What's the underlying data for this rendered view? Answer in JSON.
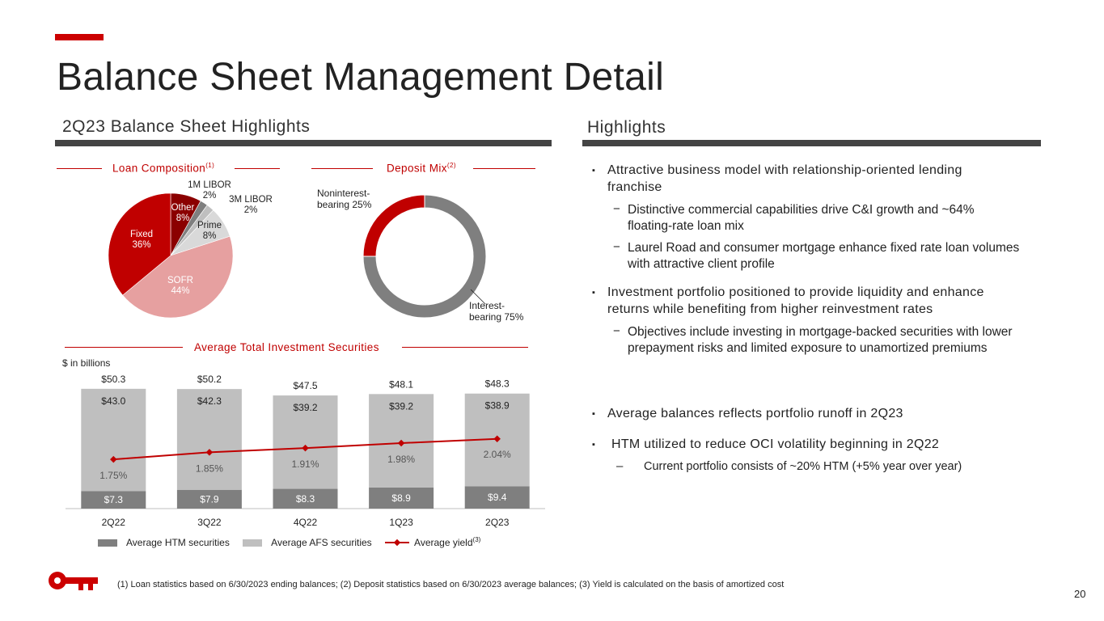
{
  "title": "Balance Sheet Management Detail",
  "left_section_title": "2Q23 Balance Sheet Highlights",
  "right_section_title": "Highlights",
  "highlights": [
    {
      "text": "Attractive business model with relationship-oriented lending franchise",
      "subs": [
        "Distinctive commercial capabilities drive C&I growth and ~64% floating-rate loan mix",
        "Laurel Road and consumer mortgage enhance fixed rate loan volumes with attractive client profile"
      ]
    },
    {
      "text": "Investment portfolio positioned to provide liquidity and enhance returns while benefiting from higher reinvestment rates",
      "subs": [
        "Objectives include investing in mortgage-backed securities with lower prepayment risks and limited exposure to unamortized premiums"
      ]
    },
    {
      "text": "Average balances reflects portfolio runoff in 2Q23",
      "subs": []
    },
    {
      "text": "HTM utilized to reduce OCI volatility beginning in 2Q22",
      "subs": [
        "Current portfolio consists of ~20% HTM (+5% year over year)"
      ]
    }
  ],
  "footnote": "(1) Loan statistics based on 6/30/2023 ending balances; (2) Deposit statistics based on 6/30/2023 average balances; (3) Yield is calculated on the basis of amortized cost",
  "page_number": "20",
  "colors": {
    "accent": "#cc0000",
    "dark_red": "#8b0000",
    "gray": "#7f7f7f",
    "light_gray": "#bfbfbf",
    "pink": "#e6a0a0"
  },
  "chart_data": [
    {
      "type": "pie",
      "title": "Loan Composition",
      "title_sup": "(1)",
      "slices": [
        {
          "label": "Other",
          "pct_text": "8%",
          "value": 8,
          "color": "#8b0000"
        },
        {
          "label": "1M LIBOR",
          "pct_text": "2%",
          "value": 2,
          "color": "#7f7f7f"
        },
        {
          "label": "3M LIBOR",
          "pct_text": "2%",
          "value": 2,
          "color": "#bfbfbf"
        },
        {
          "label": "Prime",
          "pct_text": "8%",
          "value": 8,
          "color": "#d9d9d9"
        },
        {
          "label": "SOFR",
          "pct_text": "44%",
          "value": 44,
          "color": "#e6a0a0"
        },
        {
          "label": "Fixed",
          "pct_text": "36%",
          "value": 36,
          "color": "#c00000"
        }
      ]
    },
    {
      "type": "pie",
      "title": "Deposit Mix",
      "title_sup": "(2)",
      "slices": [
        {
          "label": "Interest-\nbearing",
          "pct_text": "75%",
          "value": 75,
          "color": "#7f7f7f"
        },
        {
          "label": "Noninterest-\nbearing",
          "pct_text": "25%",
          "value": 25,
          "color": "#c00000"
        }
      ]
    },
    {
      "type": "bar",
      "title": "Average Total Investment Securities",
      "unit_note": "$ in billions",
      "categories": [
        "2Q22",
        "3Q22",
        "4Q22",
        "1Q23",
        "2Q23"
      ],
      "totals": [
        "$50.3",
        "$50.2",
        "$47.5",
        "$48.1",
        "$48.3"
      ],
      "series": [
        {
          "name": "Average HTM securities",
          "values": [
            7.3,
            7.9,
            8.3,
            8.9,
            9.4
          ],
          "labels": [
            "$7.3",
            "$7.9",
            "$8.3",
            "$8.9",
            "$9.4"
          ],
          "color": "#7f7f7f"
        },
        {
          "name": "Average AFS securities",
          "values": [
            43.0,
            42.3,
            39.2,
            39.2,
            38.9
          ],
          "labels": [
            "$43.0",
            "$42.3",
            "$39.2",
            "$39.2",
            "$38.9"
          ],
          "color": "#bfbfbf"
        }
      ],
      "line": {
        "name": "Average yield",
        "name_sup": "(3)",
        "values": [
          1.75,
          1.85,
          1.91,
          1.98,
          2.04
        ],
        "labels": [
          "1.75%",
          "1.85%",
          "1.91%",
          "1.98%",
          "2.04%"
        ],
        "color": "#c00000"
      },
      "ylim": [
        0,
        55
      ]
    }
  ]
}
